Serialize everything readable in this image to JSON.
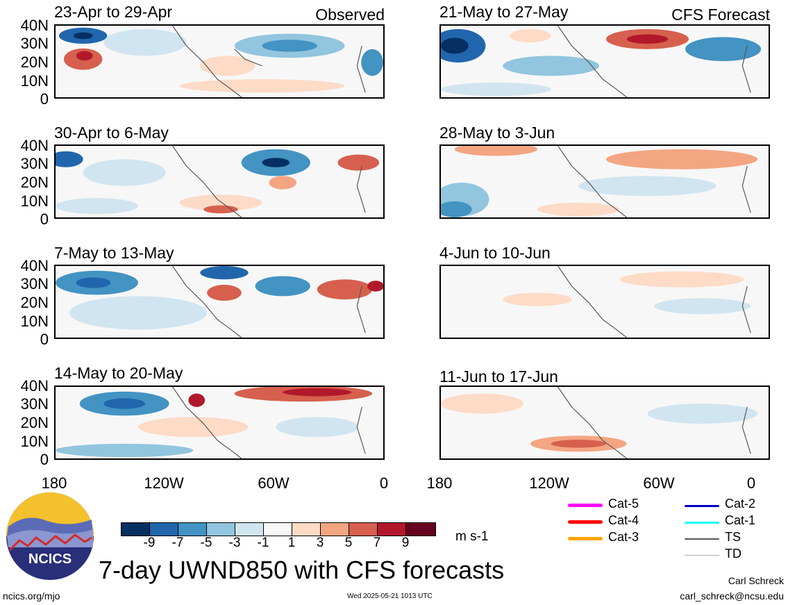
{
  "panels": [
    {
      "title": "23-Apr to 29-Apr",
      "tag": "Observed"
    },
    {
      "title": "21-May to 27-May",
      "tag": "CFS Forecast"
    },
    {
      "title": "30-Apr to 6-May",
      "tag": ""
    },
    {
      "title": "28-May to 3-Jun",
      "tag": ""
    },
    {
      "title": "7-May to 13-May",
      "tag": ""
    },
    {
      "title": "4-Jun to 10-Jun",
      "tag": ""
    },
    {
      "title": "14-May to 20-May",
      "tag": ""
    },
    {
      "title": "11-Jun to 17-Jun",
      "tag": ""
    }
  ],
  "lat_labels": [
    "40N",
    "30N",
    "20N",
    "10N",
    "0"
  ],
  "lon_labels": [
    "180",
    "120W",
    "60W",
    "0"
  ],
  "colorbar": {
    "colors": [
      "#053061",
      "#2166ac",
      "#4393c3",
      "#92c5de",
      "#d1e5f0",
      "#f7f7f7",
      "#fddbc7",
      "#f4a582",
      "#d6604d",
      "#b2182b",
      "#67001f"
    ],
    "labels": [
      "-9",
      "-7",
      "-5",
      "-3",
      "-1",
      "1",
      "3",
      "5",
      "7",
      "9"
    ],
    "units": "m s-1"
  },
  "legend": [
    {
      "label": "Cat-5",
      "color": "#ff00ff"
    },
    {
      "label": "Cat-4",
      "color": "#ff0000"
    },
    {
      "label": "Cat-3",
      "color": "#ffa500"
    },
    {
      "label": "Cat-2",
      "color": "#0000cc"
    },
    {
      "label": "Cat-1",
      "color": "#00ffff"
    },
    {
      "label": "TS",
      "color": "#555555"
    },
    {
      "label": "TD",
      "color": "#aaaaaa"
    }
  ],
  "logo": {
    "text": "NCICS"
  },
  "main_title": "7-day UWND850 with CFS forecasts",
  "footer": {
    "url": "ncics.org/mjo",
    "timestamp": "Wed 2025-05-21 1013 UTC",
    "author": "Carl Schreck",
    "email": "carl_schreck@ncsu.edu"
  }
}
